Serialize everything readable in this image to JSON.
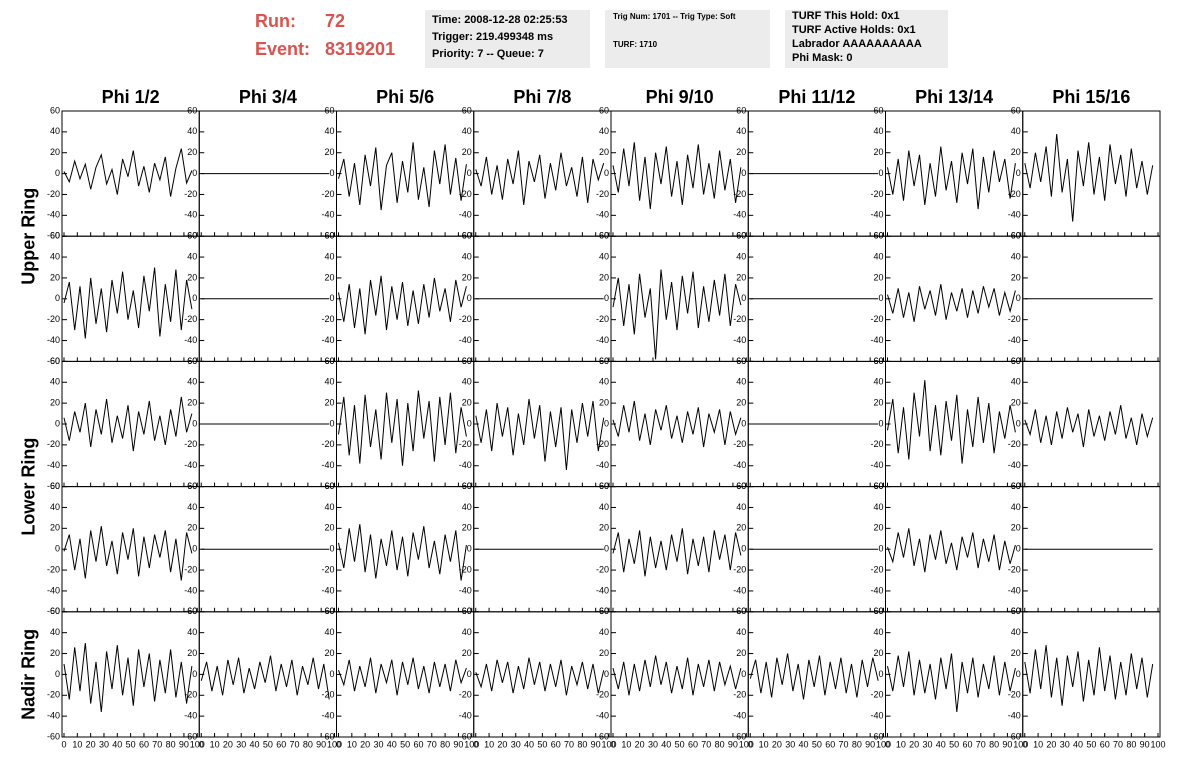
{
  "header": {
    "run_label": "Run:",
    "run": "72",
    "event_label": "Event:",
    "event": "8319201",
    "time": "Time: 2008-12-28 02:25:53",
    "trigger": "Trigger: 219.499348 ms",
    "priority": "Priority: 7 -- Queue: 7",
    "trig_num": "Trig Num: 1701 -- Trig Type: Soft",
    "turf": "TURF: 1710",
    "turf_hold": "TURF This Hold: 0x1",
    "turf_active": "TURF Active Holds: 0x1",
    "labrador": "Labrador AAAAAAAAAA",
    "phi_mask": "Phi Mask: 0"
  },
  "chart_data": {
    "type": "line",
    "color": "#000000",
    "columns": [
      "Phi 1/2",
      "Phi 3/4",
      "Phi 5/6",
      "Phi 7/8",
      "Phi 9/10",
      "Phi 11/12",
      "Phi 13/14",
      "Phi 15/16"
    ],
    "rows": [
      "Upper Ring",
      "Lower Ring",
      "Nadir Ring"
    ],
    "xlim": [
      0,
      100
    ],
    "ylim": [
      -60,
      60
    ],
    "xticks": [
      0,
      10,
      20,
      30,
      40,
      50,
      60,
      70,
      80,
      90,
      100
    ],
    "yticks": [
      -60,
      -40,
      -20,
      0,
      20,
      40,
      60
    ],
    "x": [
      0,
      4,
      8,
      12,
      16,
      20,
      24,
      28,
      32,
      36,
      40,
      44,
      48,
      52,
      56,
      60,
      64,
      68,
      72,
      76,
      80,
      84,
      88,
      92,
      96
    ],
    "panels": [
      {
        "values": [
          2,
          -8,
          12,
          -5,
          9,
          -15,
          6,
          18,
          -10,
          4,
          -20,
          14,
          -3,
          22,
          -12,
          7,
          -18,
          10,
          -6,
          16,
          -22,
          5,
          24,
          -9,
          3
        ]
      },
      {
        "values": [
          0,
          0,
          0,
          0,
          0,
          0,
          0,
          0,
          0,
          0,
          0,
          0,
          0,
          0,
          0,
          0,
          0,
          0,
          0,
          0,
          0,
          0,
          0,
          0,
          0
        ]
      },
      {
        "values": [
          -5,
          14,
          -22,
          10,
          -30,
          18,
          -12,
          25,
          -35,
          8,
          20,
          -28,
          12,
          -18,
          30,
          -25,
          6,
          -32,
          22,
          -10,
          28,
          -20,
          15,
          -26,
          9
        ]
      },
      {
        "values": [
          4,
          -12,
          16,
          -20,
          8,
          -25,
          14,
          -10,
          22,
          -30,
          12,
          -8,
          18,
          -24,
          10,
          -16,
          20,
          -12,
          6,
          -22,
          16,
          -28,
          14,
          -6,
          10
        ]
      },
      {
        "values": [
          8,
          -18,
          24,
          -12,
          30,
          -26,
          16,
          -34,
          20,
          -10,
          26,
          -22,
          12,
          -30,
          18,
          -14,
          28,
          -20,
          10,
          -24,
          22,
          -16,
          14,
          -28,
          6
        ]
      },
      {
        "values": [
          0,
          0,
          0,
          0,
          0,
          0,
          0,
          0,
          0,
          0,
          0,
          0,
          0,
          0,
          0,
          0,
          0,
          0,
          0,
          0,
          0,
          0,
          0,
          0,
          0
        ]
      },
      {
        "values": [
          6,
          -20,
          14,
          -26,
          22,
          -12,
          18,
          -30,
          10,
          -22,
          26,
          -16,
          12,
          -28,
          20,
          -10,
          24,
          -34,
          16,
          -18,
          22,
          -8,
          14,
          -24,
          10
        ]
      },
      {
        "values": [
          10,
          -14,
          20,
          -8,
          26,
          -22,
          38,
          -18,
          14,
          -46,
          22,
          -12,
          30,
          -20,
          16,
          -26,
          28,
          -10,
          18,
          -22,
          24,
          -14,
          12,
          -20,
          8
        ]
      },
      {
        "values": [
          -4,
          16,
          -30,
          12,
          -38,
          20,
          -24,
          10,
          -32,
          18,
          -14,
          26,
          -20,
          8,
          -28,
          22,
          -12,
          30,
          -36,
          14,
          -22,
          28,
          -30,
          18,
          -10
        ]
      },
      {
        "values": [
          0,
          0,
          0,
          0,
          0,
          0,
          0,
          0,
          0,
          0,
          0,
          0,
          0,
          0,
          0,
          0,
          0,
          0,
          0,
          0,
          0,
          0,
          0,
          0,
          0
        ]
      },
      {
        "values": [
          6,
          -22,
          14,
          -28,
          10,
          -34,
          18,
          -16,
          22,
          -30,
          12,
          -20,
          16,
          -26,
          8,
          -24,
          14,
          -18,
          20,
          -12,
          10,
          -22,
          18,
          -8,
          12
        ]
      },
      {
        "values": [
          0,
          0,
          0,
          0,
          0,
          0,
          0,
          0,
          0,
          0,
          0,
          0,
          0,
          0,
          0,
          0,
          0,
          0,
          0,
          0,
          0,
          0,
          0,
          0,
          0
        ]
      },
      {
        "values": [
          -8,
          20,
          -26,
          14,
          -34,
          24,
          -18,
          10,
          -58,
          28,
          -20,
          16,
          -30,
          22,
          -14,
          26,
          -28,
          12,
          -22,
          18,
          -16,
          24,
          -26,
          14,
          -6
        ]
      },
      {
        "values": [
          0,
          0,
          0,
          0,
          0,
          0,
          0,
          0,
          0,
          0,
          0,
          0,
          0,
          0,
          0,
          0,
          0,
          0,
          0,
          0,
          0,
          0,
          0,
          0,
          0
        ]
      },
      {
        "values": [
          4,
          -14,
          10,
          -18,
          6,
          -22,
          12,
          -10,
          8,
          -16,
          14,
          -20,
          6,
          -12,
          10,
          -18,
          8,
          -14,
          12,
          -8,
          10,
          -16,
          6,
          -12,
          8
        ]
      },
      {
        "values": [
          0,
          0,
          0,
          0,
          0,
          0,
          0,
          0,
          0,
          0,
          0,
          0,
          0,
          0,
          0,
          0,
          0,
          0,
          0,
          0,
          0,
          0,
          0,
          0,
          0
        ]
      },
      {
        "values": [
          6,
          -16,
          12,
          -8,
          20,
          -22,
          14,
          -10,
          24,
          -18,
          8,
          -14,
          18,
          -26,
          12,
          -10,
          22,
          -16,
          8,
          -20,
          14,
          -12,
          26,
          -8,
          10
        ]
      },
      {
        "values": [
          0,
          0,
          0,
          0,
          0,
          0,
          0,
          0,
          0,
          0,
          0,
          0,
          0,
          0,
          0,
          0,
          0,
          0,
          0,
          0,
          0,
          0,
          0,
          0,
          0
        ]
      },
      {
        "values": [
          -10,
          26,
          -30,
          18,
          -38,
          28,
          -22,
          14,
          -34,
          30,
          -18,
          24,
          -40,
          20,
          -26,
          32,
          -14,
          22,
          -36,
          26,
          -20,
          30,
          -28,
          16,
          -12
        ]
      },
      {
        "values": [
          8,
          -18,
          14,
          -26,
          20,
          -12,
          16,
          -30,
          10,
          -20,
          24,
          -14,
          18,
          -36,
          12,
          -22,
          16,
          -44,
          14,
          -18,
          20,
          -12,
          22,
          -26,
          6
        ]
      },
      {
        "values": [
          4,
          -12,
          18,
          -8,
          22,
          -16,
          10,
          -20,
          14,
          -6,
          18,
          -14,
          8,
          -18,
          12,
          -10,
          16,
          -22,
          10,
          -8,
          14,
          -20,
          12,
          -10,
          6
        ]
      },
      {
        "values": [
          0,
          0,
          0,
          0,
          0,
          0,
          0,
          0,
          0,
          0,
          0,
          0,
          0,
          0,
          0,
          0,
          0,
          0,
          0,
          0,
          0,
          0,
          0,
          0,
          0
        ]
      },
      {
        "values": [
          -6,
          24,
          -28,
          16,
          -34,
          30,
          -12,
          42,
          -26,
          18,
          -30,
          22,
          -16,
          28,
          -38,
          14,
          -22,
          26,
          -18,
          20,
          -28,
          12,
          -14,
          18,
          -8
        ]
      },
      {
        "values": [
          4,
          -10,
          14,
          -18,
          8,
          -20,
          12,
          -14,
          16,
          -8,
          10,
          -22,
          14,
          -12,
          8,
          -16,
          12,
          -10,
          18,
          -14,
          6,
          -20,
          10,
          -12,
          6
        ]
      },
      {
        "values": [
          -2,
          14,
          -20,
          10,
          -28,
          18,
          -12,
          22,
          -16,
          8,
          -24,
          16,
          -10,
          20,
          -26,
          12,
          -18,
          14,
          -8,
          18,
          -22,
          10,
          -30,
          16,
          -4
        ]
      },
      {
        "values": [
          0,
          0,
          0,
          0,
          0,
          0,
          0,
          0,
          0,
          0,
          0,
          0,
          0,
          0,
          0,
          0,
          0,
          0,
          0,
          0,
          0,
          0,
          0,
          0,
          0
        ]
      },
      {
        "values": [
          6,
          -18,
          20,
          -12,
          24,
          -22,
          14,
          -28,
          10,
          -16,
          18,
          -20,
          12,
          -26,
          16,
          -10,
          22,
          -18,
          8,
          -24,
          14,
          -12,
          18,
          -30,
          4
        ]
      },
      {
        "values": [
          0,
          0,
          0,
          0,
          0,
          0,
          0,
          0,
          0,
          0,
          0,
          0,
          0,
          0,
          0,
          0,
          0,
          0,
          0,
          0,
          0,
          0,
          0,
          0,
          0
        ]
      },
      {
        "values": [
          -4,
          16,
          -22,
          10,
          -14,
          18,
          -26,
          12,
          -18,
          8,
          -20,
          14,
          -12,
          20,
          -24,
          10,
          -16,
          12,
          -22,
          18,
          -10,
          14,
          -20,
          16,
          -6
        ]
      },
      {
        "values": [
          0,
          0,
          0,
          0,
          0,
          0,
          0,
          0,
          0,
          0,
          0,
          0,
          0,
          0,
          0,
          0,
          0,
          0,
          0,
          0,
          0,
          0,
          0,
          0,
          0
        ]
      },
      {
        "values": [
          2,
          -12,
          16,
          -8,
          20,
          -16,
          10,
          -22,
          14,
          -10,
          18,
          -14,
          6,
          -20,
          12,
          -8,
          16,
          -18,
          10,
          -12,
          14,
          -20,
          8,
          -14,
          4
        ]
      },
      {
        "values": [
          0,
          0,
          0,
          0,
          0,
          0,
          0,
          0,
          0,
          0,
          0,
          0,
          0,
          0,
          0,
          0,
          0,
          0,
          0,
          0,
          0,
          0,
          0,
          0,
          0
        ]
      },
      {
        "values": [
          10,
          -24,
          26,
          -16,
          30,
          -28,
          12,
          -36,
          22,
          -14,
          28,
          -20,
          16,
          -30,
          24,
          -12,
          20,
          -26,
          14,
          -18,
          24,
          -22,
          12,
          -28,
          8
        ]
      },
      {
        "values": [
          -6,
          12,
          -16,
          8,
          -20,
          14,
          -10,
          16,
          -18,
          6,
          -14,
          12,
          -8,
          18,
          -16,
          10,
          -12,
          14,
          -20,
          8,
          -10,
          16,
          -14,
          10,
          -24
        ]
      },
      {
        "values": [
          4,
          -10,
          14,
          -16,
          8,
          -12,
          16,
          -18,
          10,
          -8,
          14,
          -20,
          12,
          -10,
          16,
          -14,
          8,
          -18,
          12,
          -12,
          10,
          -16,
          14,
          -8,
          6
        ]
      },
      {
        "values": [
          2,
          -12,
          10,
          -16,
          14,
          -8,
          12,
          -18,
          8,
          -14,
          16,
          -10,
          12,
          -16,
          10,
          -12,
          14,
          -20,
          8,
          -10,
          12,
          -14,
          10,
          -18,
          4
        ]
      },
      {
        "values": [
          6,
          -14,
          12,
          -20,
          10,
          -16,
          14,
          -12,
          18,
          -10,
          12,
          -18,
          8,
          -14,
          16,
          -20,
          10,
          -12,
          14,
          -16,
          12,
          -10,
          8,
          -14,
          6
        ]
      },
      {
        "values": [
          -4,
          14,
          -18,
          12,
          -22,
          16,
          -10,
          20,
          -16,
          10,
          -24,
          14,
          -12,
          18,
          -20,
          12,
          -14,
          16,
          -18,
          10,
          -22,
          14,
          -12,
          16,
          -6
        ]
      },
      {
        "values": [
          8,
          -16,
          18,
          -12,
          22,
          -20,
          14,
          -18,
          10,
          -24,
          16,
          -14,
          20,
          -36,
          12,
          -18,
          16,
          -22,
          10,
          -14,
          18,
          -20,
          12,
          -16,
          6
        ]
      },
      {
        "values": [
          12,
          -18,
          24,
          -14,
          28,
          -22,
          16,
          -30,
          18,
          -12,
          22,
          -26,
          14,
          -20,
          26,
          -16,
          18,
          -24,
          12,
          -20,
          20,
          -14,
          16,
          -22,
          10
        ]
      }
    ]
  }
}
